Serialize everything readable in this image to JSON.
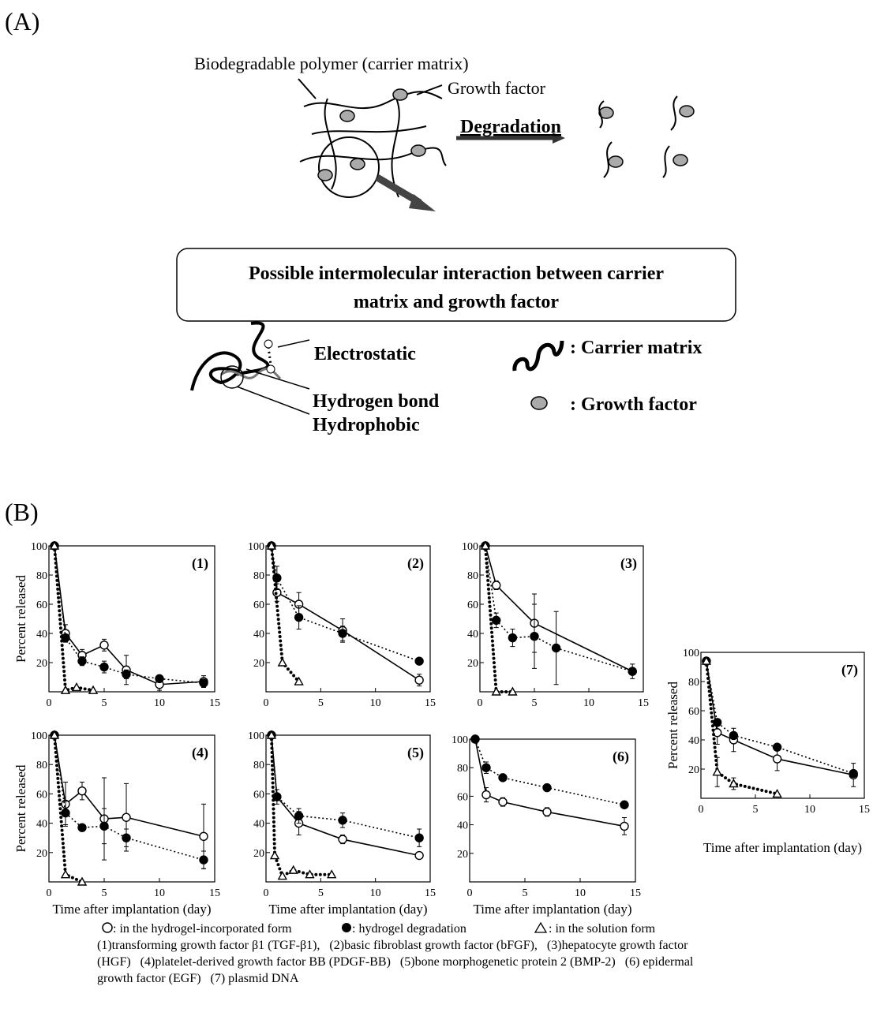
{
  "panel_a": {
    "label": "(A)",
    "polymer_label": "Biodegradable polymer (carrier matrix)",
    "growth_factor_label": "Growth factor",
    "degradation": "Degradation",
    "box_title": [
      "Possible intermolecular interaction between carrier",
      "matrix and growth factor"
    ],
    "electrostatic": "Electrostatic",
    "hydrogen_bond": "Hydrogen bond",
    "hydrophobic": "Hydrophobic",
    "legend_carrier": ": Carrier matrix",
    "legend_growth": ": Growth factor"
  },
  "panel_b_label": "(B)",
  "chart_data": [
    {
      "type": "line",
      "label": "(1)",
      "ylabel": "Percent released",
      "xlim": [
        0,
        15
      ],
      "xticks": [
        0,
        5,
        10,
        15
      ],
      "ylim": [
        0,
        100
      ],
      "yticks": [
        20,
        40,
        60,
        80,
        100
      ],
      "series": [
        {
          "marker": "open-circle",
          "line_style": "solid",
          "color": "#000000",
          "x": [
            0.5,
            1.5,
            3,
            5,
            7,
            10,
            14
          ],
          "values": [
            100,
            40,
            25,
            32,
            15,
            5,
            7
          ],
          "errors": [
            null,
            6,
            4,
            4,
            10,
            4,
            4
          ]
        },
        {
          "marker": "filled-circle",
          "line_style": "dotted",
          "color": "#000000",
          "x": [
            0.5,
            1.5,
            3,
            5,
            7,
            10,
            14
          ],
          "values": [
            100,
            37,
            21,
            17,
            12,
            9,
            6
          ],
          "errors": [
            null,
            null,
            3,
            4,
            3,
            2,
            2
          ]
        },
        {
          "marker": "open-triangle",
          "line_style": "thick-dotted",
          "color": "#000000",
          "x": [
            0.5,
            1.5,
            2.5,
            4
          ],
          "values": [
            100,
            1,
            3,
            1
          ]
        }
      ]
    },
    {
      "type": "line",
      "label": "(2)",
      "xlim": [
        0,
        15
      ],
      "xticks": [
        0,
        5,
        10,
        15
      ],
      "ylim": [
        0,
        100
      ],
      "yticks": [
        20,
        40,
        60,
        80,
        100
      ],
      "series": [
        {
          "marker": "open-circle",
          "line_style": "solid",
          "color": "#000000",
          "x": [
            0.5,
            1,
            3,
            7,
            14
          ],
          "values": [
            100,
            68,
            60,
            42,
            8
          ],
          "errors": [
            null,
            6,
            8,
            8,
            4
          ]
        },
        {
          "marker": "filled-circle",
          "line_style": "dotted",
          "color": "#000000",
          "x": [
            0.5,
            1,
            3,
            7,
            14
          ],
          "values": [
            100,
            78,
            51,
            40,
            21
          ],
          "errors": [
            null,
            8,
            8,
            5,
            null
          ]
        },
        {
          "marker": "open-triangle",
          "line_style": "thick-dotted",
          "color": "#000000",
          "x": [
            0.5,
            1.5,
            3
          ],
          "values": [
            100,
            20,
            7
          ]
        }
      ]
    },
    {
      "type": "line",
      "label": "(3)",
      "xlim": [
        0,
        15
      ],
      "xticks": [
        0,
        5,
        10,
        15
      ],
      "ylim": [
        0,
        100
      ],
      "yticks": [
        20,
        40,
        60,
        80,
        100
      ],
      "series": [
        {
          "marker": "open-circle",
          "line_style": "solid",
          "color": "#000000",
          "x": [
            0.5,
            1.5,
            5,
            14
          ],
          "values": [
            100,
            73,
            47,
            14
          ],
          "errors": [
            null,
            3,
            20,
            null
          ]
        },
        {
          "marker": "filled-circle",
          "line_style": "dotted",
          "color": "#000000",
          "x": [
            0.5,
            1.5,
            3,
            5,
            7,
            14
          ],
          "values": [
            100,
            49,
            37,
            38,
            30,
            14
          ],
          "errors": [
            null,
            5,
            6,
            22,
            25,
            5
          ]
        },
        {
          "marker": "open-triangle",
          "line_style": "thick-dotted",
          "color": "#000000",
          "x": [
            0.5,
            1.5,
            3
          ],
          "values": [
            100,
            0,
            0
          ]
        }
      ]
    },
    {
      "type": "line",
      "label": "(4)",
      "ylabel": "Percent released",
      "xlabel": "Time after implantation (day)",
      "xlim": [
        0,
        15
      ],
      "xticks": [
        0,
        5,
        10,
        15
      ],
      "ylim": [
        0,
        100
      ],
      "yticks": [
        20,
        40,
        60,
        80,
        100
      ],
      "series": [
        {
          "marker": "open-circle",
          "line_style": "solid",
          "color": "#000000",
          "x": [
            0.5,
            1.5,
            3,
            5,
            7,
            14
          ],
          "values": [
            100,
            53,
            62,
            43,
            44,
            31
          ],
          "errors": [
            null,
            15,
            6,
            28,
            23,
            22
          ]
        },
        {
          "marker": "filled-circle",
          "line_style": "dotted",
          "color": "#000000",
          "x": [
            0.5,
            1.5,
            3,
            5,
            7,
            14
          ],
          "values": [
            100,
            47,
            37,
            38,
            30,
            15
          ],
          "errors": [
            null,
            8,
            null,
            12,
            6,
            6
          ]
        },
        {
          "marker": "open-triangle",
          "line_style": "thick-dotted",
          "color": "#000000",
          "x": [
            0.5,
            1.5,
            3
          ],
          "values": [
            100,
            5,
            0
          ]
        }
      ]
    },
    {
      "type": "line",
      "label": "(5)",
      "xlabel": "Time after implantation (day)",
      "xlim": [
        0,
        15
      ],
      "xticks": [
        0,
        5,
        10,
        15
      ],
      "ylim": [
        0,
        100
      ],
      "yticks": [
        20,
        40,
        60,
        80,
        100
      ],
      "series": [
        {
          "marker": "open-circle",
          "line_style": "solid",
          "color": "#000000",
          "x": [
            0.5,
            1,
            3,
            7,
            14
          ],
          "values": [
            100,
            58,
            40,
            29,
            18
          ],
          "errors": [
            null,
            5,
            8,
            3,
            null
          ]
        },
        {
          "marker": "filled-circle",
          "line_style": "dotted",
          "color": "#000000",
          "x": [
            0.5,
            1,
            3,
            7,
            14
          ],
          "values": [
            100,
            58,
            45,
            42,
            30
          ],
          "errors": [
            null,
            null,
            5,
            5,
            6
          ]
        },
        {
          "marker": "open-triangle",
          "line_style": "thick-dotted",
          "color": "#000000",
          "x": [
            0.5,
            0.8,
            1.5,
            2.5,
            4,
            6
          ],
          "values": [
            100,
            18,
            4,
            8,
            5,
            5
          ]
        }
      ]
    },
    {
      "type": "line",
      "label": "(6)",
      "xlabel": "Time after implantation (day)",
      "xlim": [
        0,
        15
      ],
      "xticks": [
        0,
        5,
        10,
        15
      ],
      "ylim": [
        0,
        100
      ],
      "yticks": [
        20,
        40,
        60,
        80,
        100
      ],
      "series": [
        {
          "marker": "open-circle",
          "line_style": "solid",
          "color": "#000000",
          "x": [
            0.5,
            1.5,
            3,
            7,
            14
          ],
          "values": [
            100,
            61,
            56,
            49,
            39
          ],
          "errors": [
            null,
            5,
            3,
            3,
            6
          ]
        },
        {
          "marker": "filled-circle",
          "line_style": "dotted",
          "color": "#000000",
          "x": [
            0.5,
            1.5,
            3,
            7,
            14
          ],
          "values": [
            100,
            80,
            73,
            66,
            54
          ],
          "errors": [
            null,
            4,
            null,
            null,
            null
          ]
        }
      ]
    },
    {
      "type": "line",
      "label": "(7)",
      "ylabel": "Percent released",
      "xlabel": "Time after implantation (day)",
      "xlim": [
        0,
        15
      ],
      "xticks": [
        0,
        5,
        10,
        15
      ],
      "ylim": [
        0,
        100
      ],
      "yticks": [
        20,
        40,
        60,
        80,
        100
      ],
      "series": [
        {
          "marker": "open-circle",
          "line_style": "solid",
          "color": "#000000",
          "x": [
            0.5,
            1.5,
            3,
            7,
            14
          ],
          "values": [
            94,
            45,
            40,
            27,
            16
          ],
          "errors": [
            null,
            8,
            8,
            8,
            8
          ]
        },
        {
          "marker": "filled-circle",
          "line_style": "dotted",
          "color": "#000000",
          "x": [
            0.5,
            1.5,
            3,
            7,
            14
          ],
          "values": [
            94,
            52,
            43,
            35,
            17
          ]
        },
        {
          "marker": "open-triangle",
          "line_style": "thick-dotted",
          "color": "#000000",
          "x": [
            0.5,
            1.5,
            3,
            7
          ],
          "values": [
            94,
            18,
            10,
            3
          ],
          "errors": [
            null,
            10,
            4,
            null
          ]
        }
      ]
    }
  ],
  "caption": {
    "legend": [
      ": in the hydrogel-incorporated form",
      ": hydrogel degradation",
      ": in the solution form"
    ],
    "lines": [
      "(1)transforming growth factor β1 (TGF-β1),   (2)basic fibroblast growth factor (bFGF),   (3)hepatocyte growth factor",
      "(HGF)   (4)platelet-derived growth factor BB (PDGF-BB)   (5)bone morphogenetic protein 2 (BMP-2)   (6) epidermal",
      "growth factor (EGF)   (7) plasmid DNA"
    ]
  }
}
